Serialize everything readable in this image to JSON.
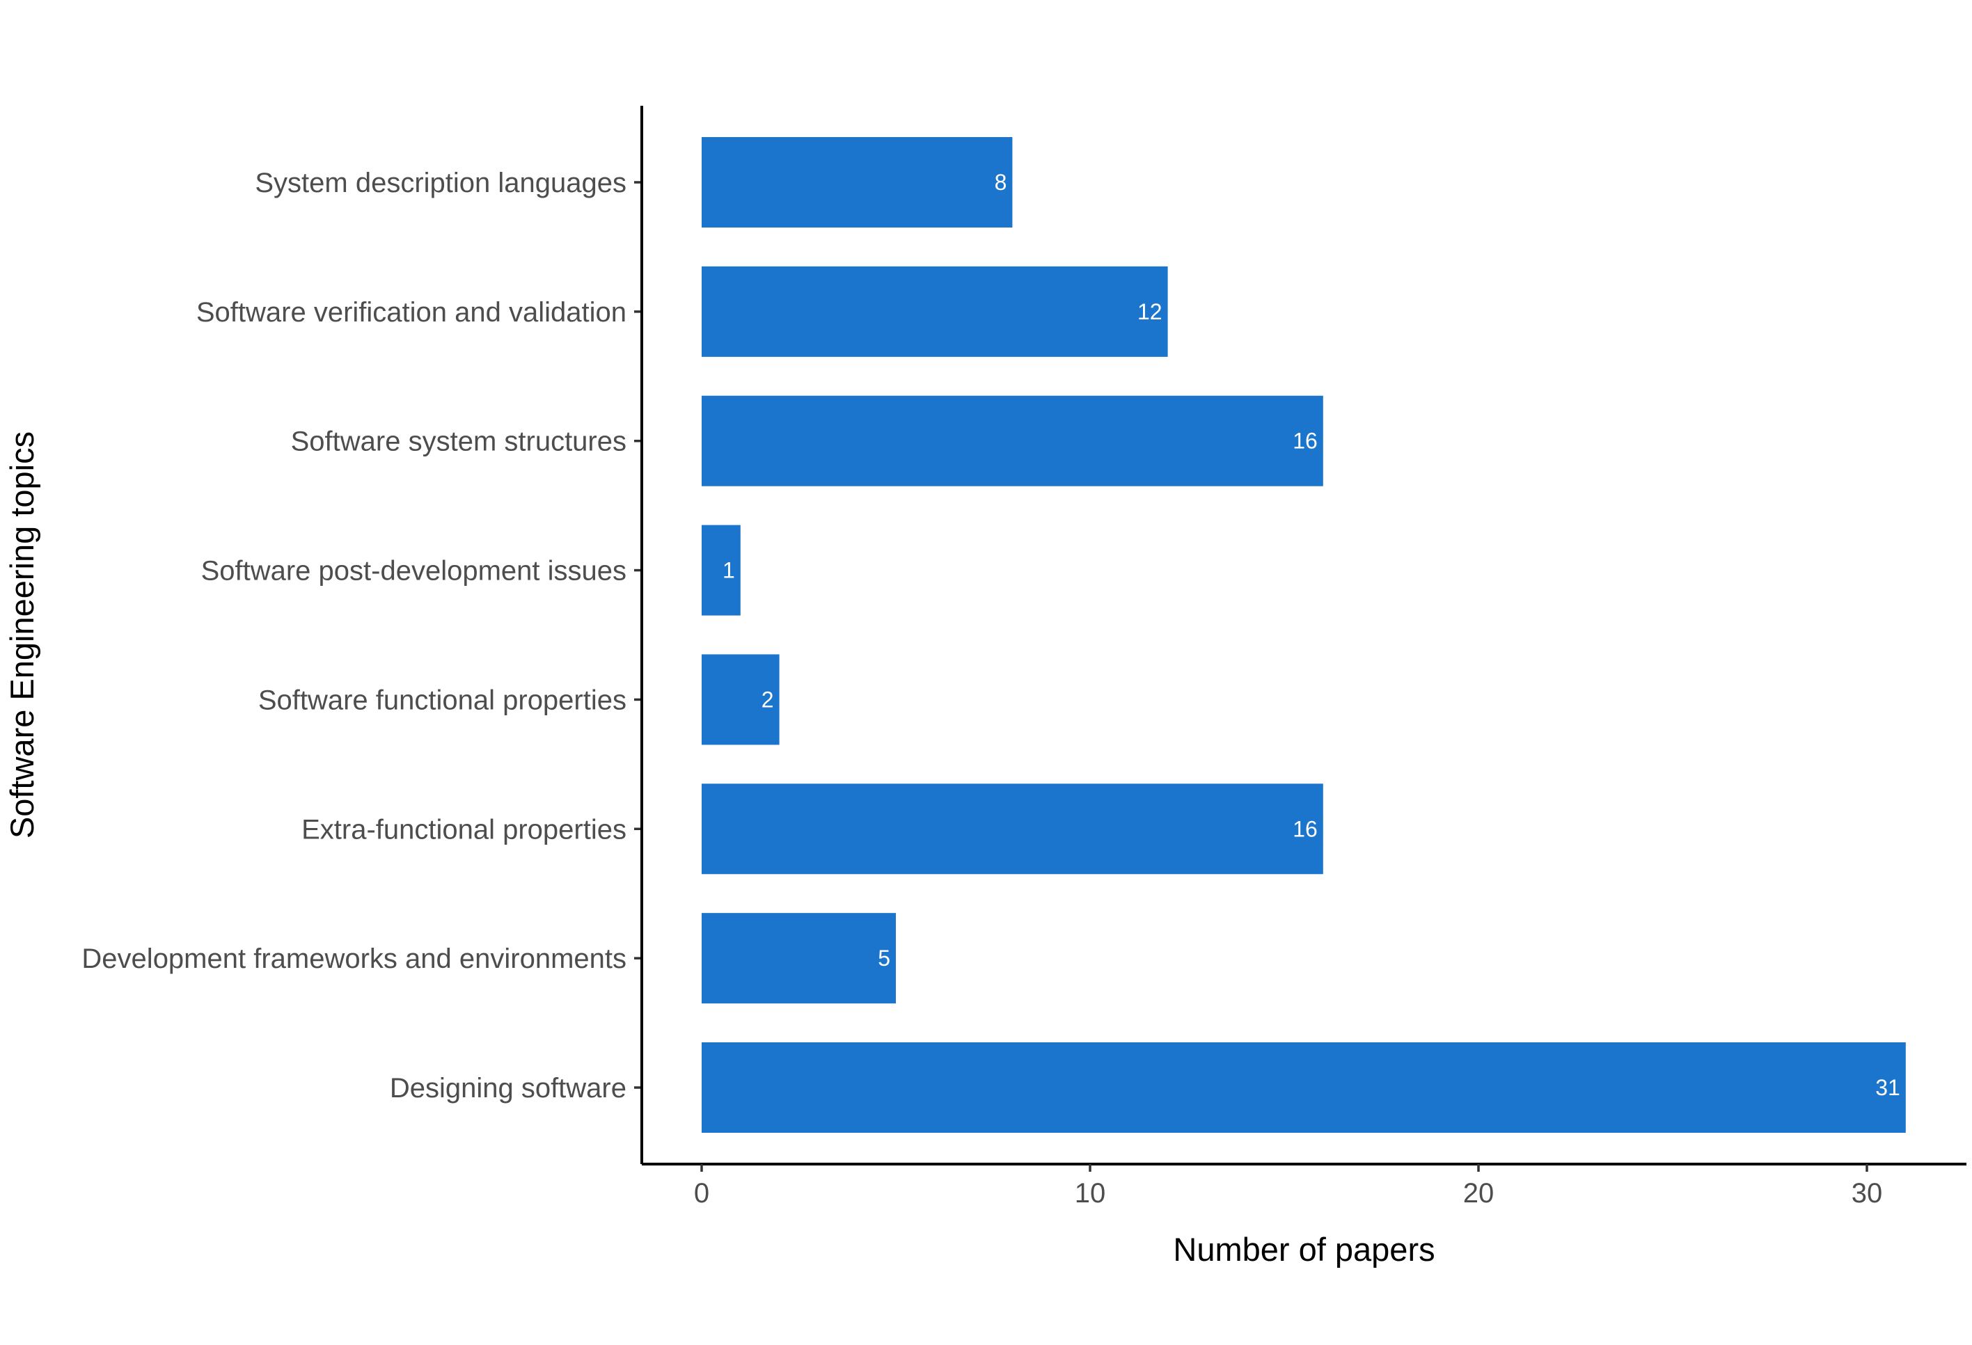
{
  "chart_data": {
    "type": "bar",
    "orientation": "horizontal",
    "categories": [
      "System description languages",
      "Software verification and validation",
      "Software system structures",
      "Software post-development issues",
      "Software functional properties",
      "Extra-functional properties",
      "Development frameworks and environments",
      "Designing software"
    ],
    "values": [
      8,
      12,
      16,
      1,
      2,
      16,
      5,
      31
    ],
    "xlabel": "Number of papers",
    "ylabel": "Software Engineering topics",
    "xlim": [
      0,
      32.5
    ],
    "xticks": [
      0,
      10,
      20,
      30
    ],
    "bar_color": "#1b75cc",
    "data_labels": true,
    "grid": false,
    "legend": "none"
  }
}
